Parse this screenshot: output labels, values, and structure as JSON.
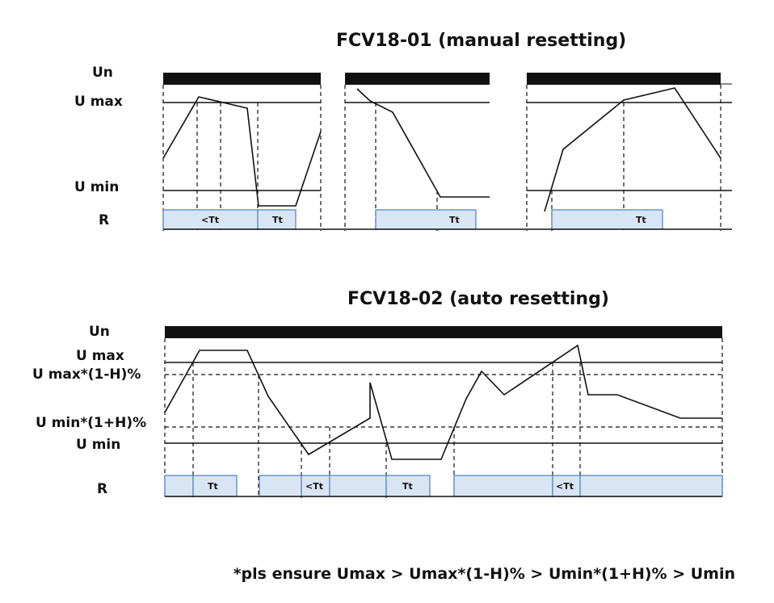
{
  "diagrams": [
    {
      "title": "FCV18-01 (manual resetting)",
      "labels": {
        "un": "Un",
        "umax": "U max",
        "umin": "U min",
        "r": "R"
      },
      "relay_marks": [
        "<Tt",
        "Tt",
        "Tt",
        "Tt"
      ]
    },
    {
      "title": "FCV18-02 (auto resetting)",
      "labels": {
        "un": "Un",
        "umax": "U max",
        "umax_h": "U max*(1-H)%",
        "umin_h": "U min*(1+H)%",
        "umin": "U min",
        "r": "R"
      },
      "relay_marks": [
        "Tt",
        "<Tt",
        "Tt",
        "<Tt"
      ]
    }
  ],
  "footnote": "*pls ensure Umax > Umax*(1-H)% > Umin*(1+H)% > Umin",
  "colors": {
    "line": "#111111",
    "relay_fill": "#d9e5f5",
    "relay_stroke": "#4a7fc6"
  }
}
